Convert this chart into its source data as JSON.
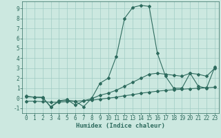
{
  "title": "",
  "xlabel": "Humidex (Indice chaleur)",
  "ylabel": "",
  "bg_color": "#cce8e0",
  "line_color": "#2e6b5e",
  "grid_color": "#a0ccc4",
  "x_ticks": [
    0,
    1,
    2,
    3,
    4,
    5,
    6,
    7,
    8,
    9,
    10,
    11,
    12,
    13,
    14,
    15,
    16,
    17,
    18,
    19,
    20,
    21,
    22,
    23
  ],
  "y_ticks": [
    -1,
    0,
    1,
    2,
    3,
    4,
    5,
    6,
    7,
    8,
    9
  ],
  "ylim": [
    -1.5,
    9.7
  ],
  "xlim": [
    -0.5,
    23.5
  ],
  "series1_x": [
    0,
    1,
    2,
    3,
    4,
    5,
    6,
    7,
    8,
    9,
    10,
    11,
    12,
    13,
    14,
    15,
    16,
    17,
    18,
    19,
    20,
    21,
    22,
    23
  ],
  "series1_y": [
    0.2,
    0.1,
    0.1,
    -0.9,
    -0.3,
    -0.2,
    -0.3,
    -0.85,
    0.0,
    1.5,
    2.0,
    4.2,
    8.0,
    9.1,
    9.3,
    9.2,
    4.5,
    2.2,
    1.0,
    1.0,
    2.5,
    1.2,
    1.0,
    3.1
  ],
  "series2_x": [
    0,
    1,
    2,
    3,
    4,
    5,
    6,
    7,
    8,
    9,
    10,
    11,
    12,
    13,
    14,
    15,
    16,
    17,
    18,
    19,
    20,
    21,
    22,
    23
  ],
  "series2_y": [
    -0.3,
    -0.3,
    -0.35,
    -0.4,
    -0.4,
    -0.35,
    -0.3,
    -0.25,
    -0.2,
    -0.1,
    0.0,
    0.1,
    0.25,
    0.35,
    0.5,
    0.6,
    0.7,
    0.78,
    0.85,
    0.9,
    0.95,
    1.0,
    1.05,
    1.1
  ],
  "series3_x": [
    0,
    1,
    2,
    3,
    4,
    5,
    6,
    7,
    8,
    9,
    10,
    11,
    12,
    13,
    14,
    15,
    16,
    17,
    18,
    19,
    20,
    21,
    22,
    23
  ],
  "series3_y": [
    0.15,
    0.1,
    0.05,
    -0.85,
    -0.25,
    -0.15,
    -0.7,
    -0.25,
    -0.05,
    0.3,
    0.5,
    0.8,
    1.2,
    1.6,
    2.0,
    2.4,
    2.5,
    2.4,
    2.3,
    2.2,
    2.5,
    2.4,
    2.2,
    3.0
  ],
  "tick_fontsize": 5.5,
  "xlabel_fontsize": 6.5
}
